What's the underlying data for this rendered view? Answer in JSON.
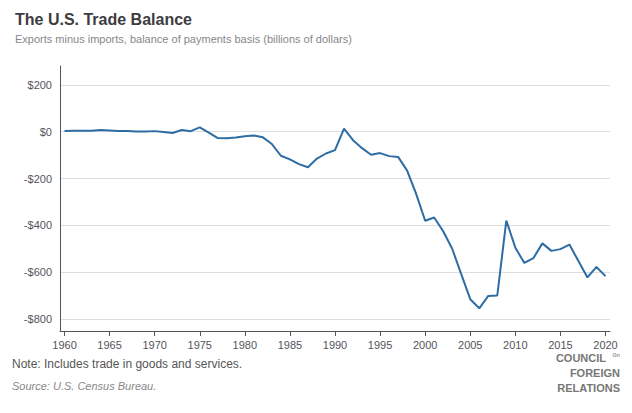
{
  "chart_data": {
    "type": "line",
    "title": "The U.S. Trade Balance",
    "subtitle": "Exports minus imports, balance of payments basis (billions of dollars)",
    "note": "Note: Includes trade in goods and services.",
    "source": "Source: U.S. Census Bureau.",
    "annotations": [
      "COUNCIL",
      "ᵒⁿ",
      "FOREIGN",
      "RELATIONS"
    ],
    "color": "#2e6da4",
    "grid": true,
    "xlim": [
      1959.5,
      2020.5
    ],
    "xticks": [
      1960,
      1965,
      1970,
      1975,
      1980,
      1985,
      1990,
      1995,
      2000,
      2005,
      2010,
      2015,
      2020
    ],
    "ylim": [
      -850,
      280
    ],
    "yticks": [
      {
        "value": 200,
        "label": "$200"
      },
      {
        "value": 0,
        "label": "$0"
      },
      {
        "value": -200,
        "label": "-$200"
      },
      {
        "value": -400,
        "label": "-$400"
      },
      {
        "value": -600,
        "label": "-$600"
      },
      {
        "value": -800,
        "label": "-$800"
      }
    ],
    "x": [
      1960,
      1961,
      1962,
      1963,
      1964,
      1965,
      1966,
      1967,
      1968,
      1969,
      1970,
      1971,
      1972,
      1973,
      1974,
      1975,
      1976,
      1977,
      1978,
      1979,
      1980,
      1981,
      1982,
      1983,
      1984,
      1985,
      1986,
      1987,
      1988,
      1989,
      1990,
      1991,
      1992,
      1993,
      1994,
      1995,
      1996,
      1997,
      1998,
      1999,
      2000,
      2001,
      2002,
      2003,
      2004,
      2005,
      2006,
      2007,
      2008,
      2009,
      2010,
      2011,
      2012,
      2013,
      2014,
      2015,
      2016,
      2017,
      2018,
      2019,
      2020
    ],
    "values": [
      2.4,
      3.8,
      3.4,
      4.4,
      6.8,
      5.4,
      3.0,
      2.6,
      0.6,
      0.4,
      2.3,
      -1.3,
      -5.8,
      7.1,
      2.1,
      18.1,
      -4.3,
      -27.2,
      -27.9,
      -24.6,
      -19.7,
      -16.2,
      -24.2,
      -52.7,
      -102.7,
      -118.0,
      -138.5,
      -151.7,
      -114.7,
      -93.1,
      -78.7,
      13.1,
      -36.4,
      -70.3,
      -98.3,
      -91.4,
      -104.3,
      -107.6,
      -166.1,
      -265.1,
      -379.8,
      -365.8,
      -424.4,
      -499.4,
      -607.7,
      -714.4,
      -753.3,
      -700.3,
      -698.3,
      -379.4,
      -494.7,
      -559.9,
      -539.5,
      -476.4,
      -508.3,
      -500.8,
      -481.5,
      -551.7,
      -621.5,
      -576.9,
      -616.1
    ]
  }
}
